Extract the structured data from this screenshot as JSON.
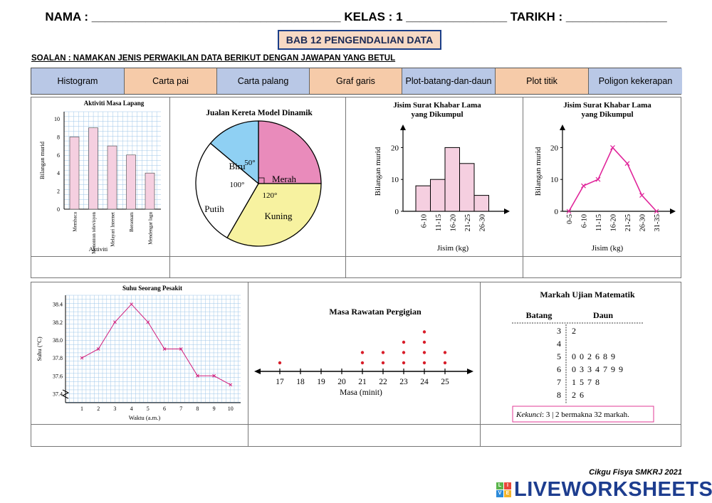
{
  "header": {
    "text": "NAMA : _____________________________________ KELAS : 1 _______________ TARIKH : _______________"
  },
  "title": "BAB 12 PENGENDALIAN DATA",
  "question": "SOALAN : NAMAKAN JENIS PERWAKILAN DATA BERIKUT DENGAN JAWAPAN YANG BETUL",
  "answers": [
    {
      "label": "Histogram",
      "color": "#b9c8e6"
    },
    {
      "label": "Carta pai",
      "color": "#f6cba9"
    },
    {
      "label": "Carta palang",
      "color": "#b9c8e6"
    },
    {
      "label": "Graf garis",
      "color": "#f6cba9"
    },
    {
      "label": "Plot-batang-dan-daun",
      "color": "#b9c8e6"
    },
    {
      "label": "Plot titik",
      "color": "#f6cba9"
    },
    {
      "label": "Poligon kekerapan",
      "color": "#b9c8e6"
    }
  ],
  "chart_data": [
    {
      "type": "bar",
      "title": "Aktiviti Masa Lapang",
      "xlabel": "Aktiviti",
      "ylabel": "Bilangan murid",
      "categories": [
        "Membaca",
        "Menonton televisyen",
        "Melayari Internet",
        "Bersenam",
        "Mendengar lagu"
      ],
      "values": [
        8,
        9,
        7,
        6,
        4
      ],
      "ylim": [
        0,
        10
      ],
      "yticks": [
        "0",
        "2",
        "4",
        "6",
        "8",
        "10"
      ],
      "color": "#f5cfe0"
    },
    {
      "type": "pie",
      "title": "Jualan Kereta Model Dinamik",
      "slices": [
        {
          "label": "Merah",
          "angle": 90,
          "color": "#e98bbb"
        },
        {
          "label": "Kuning",
          "angle": 120,
          "color": "#f7f2a0"
        },
        {
          "label": "Putih",
          "angle": 100,
          "color": "#ffffff"
        },
        {
          "label": "Biru",
          "angle": 50,
          "color": "#8fd0f3"
        }
      ],
      "angle_labels": [
        "50°",
        "100°",
        "120°"
      ]
    },
    {
      "type": "bar",
      "subtype": "histogram",
      "title": "Jisim Surat Khabar Lama yang Dikumpul",
      "xlabel": "Jisim (kg)",
      "ylabel": "Bilangan murid",
      "categories": [
        "6-10",
        "11-15",
        "16-20",
        "21-25",
        "26-30"
      ],
      "values": [
        8,
        10,
        20,
        15,
        5
      ],
      "ylim": [
        0,
        25
      ],
      "yticks": [
        "0",
        "10",
        "20"
      ],
      "color": "#f5cfe0"
    },
    {
      "type": "line",
      "subtype": "frequency-polygon",
      "title": "Jisim Surat Khabar Lama yang Dikumpul",
      "xlabel": "Jisim (kg)",
      "ylabel": "Bilangan murid",
      "categories": [
        "0-5",
        "6-10",
        "11-15",
        "16-20",
        "21-25",
        "26-30",
        "31-35"
      ],
      "values": [
        0,
        8,
        10,
        20,
        15,
        5,
        0
      ],
      "ylim": [
        0,
        25
      ],
      "yticks": [
        "0",
        "10",
        "20"
      ],
      "color": "#e0259a"
    },
    {
      "type": "line",
      "title": "Suhu Seorang Pesakit",
      "xlabel": "Waktu (a.m.)",
      "ylabel": "Suhu (°C)",
      "x": [
        1,
        2,
        3,
        4,
        5,
        6,
        7,
        8,
        9,
        10
      ],
      "values": [
        37.8,
        37.9,
        38.2,
        38.4,
        38.2,
        37.9,
        37.9,
        37.6,
        37.6,
        37.5
      ],
      "ylim": [
        37.3,
        38.5
      ],
      "yticks": [
        "37.4",
        "37.6",
        "37.8",
        "38.0",
        "38.2",
        "38.4"
      ],
      "xticks": [
        "1",
        "2",
        "3",
        "4",
        "5",
        "6",
        "7",
        "8",
        "9",
        "10"
      ],
      "color": "#d01b7a"
    },
    {
      "type": "scatter",
      "subtype": "dot-plot",
      "title": "Masa Rawatan Pergigian",
      "xlabel": "Masa (minit)",
      "xticks": [
        "17",
        "18",
        "19",
        "20",
        "21",
        "22",
        "23",
        "24",
        "25"
      ],
      "counts": [
        1,
        0,
        0,
        0,
        2,
        2,
        3,
        4,
        2
      ],
      "color": "#d81e2a"
    },
    {
      "type": "table",
      "subtype": "stem-and-leaf",
      "title": "Markah Ujian Matematik",
      "stem_header": "Batang",
      "leaf_header": "Daun",
      "rows": [
        {
          "stem": "3",
          "leaves": "2"
        },
        {
          "stem": "4",
          "leaves": ""
        },
        {
          "stem": "5",
          "leaves": "0 0 2 6 8 9"
        },
        {
          "stem": "6",
          "leaves": "0 3 3 4 7 9 9"
        },
        {
          "stem": "7",
          "leaves": "1 5 7 8"
        },
        {
          "stem": "8",
          "leaves": "2 6"
        }
      ],
      "key_label": "Kekunci",
      "key_text": ": 3 | 2 bermakna 32 markah."
    }
  ],
  "footer": {
    "credit": "Cikgu Fisya SMKRJ 2021",
    "logo": "LIVEWORKSHEETS",
    "logo_icon_letters": [
      "L",
      "I",
      "V",
      "E"
    ],
    "logo_icon_colors": [
      "#5ab54b",
      "#e8473a",
      "#2c8ad8",
      "#f4b42a"
    ]
  }
}
